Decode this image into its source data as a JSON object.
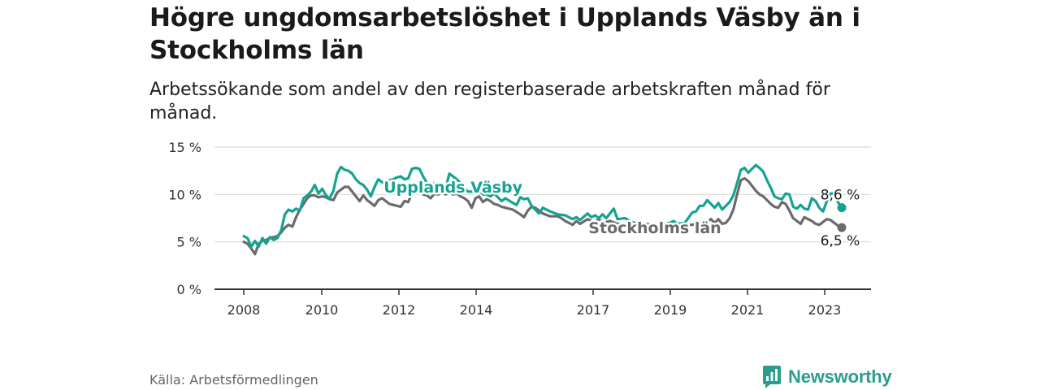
{
  "header": {
    "title": "Högre ungdomsarbetslöshet i Upplands Väsby än i Stockholms län",
    "subtitle": "Arbetssökande som andel av den registerbaserade arbetskraften månad för månad."
  },
  "footer": {
    "source": "Källa: Arbetsförmedlingen",
    "brand": "Newsworthy"
  },
  "colors": {
    "upplands": "#15a391",
    "stockholm": "#6b6b6e",
    "grid": "#d9d9d9",
    "axis": "#333333"
  },
  "chart_data": {
    "type": "line",
    "title": "Högre ungdomsarbetslöshet i Upplands Väsby än i Stockholms län",
    "ylabel": "",
    "xlabel": "",
    "ylim": [
      0,
      15
    ],
    "xlim": [
      2008.0,
      2024.0
    ],
    "y_ticks": [
      0,
      5,
      10,
      15
    ],
    "y_tick_labels": [
      "0 %",
      "5 %",
      "10 %",
      "15 %"
    ],
    "x_ticks": [
      2008,
      2010,
      2012,
      2014,
      2017,
      2019,
      2021,
      2023
    ],
    "x_tick_labels": [
      "2008",
      "2010",
      "2012",
      "2014",
      "2017",
      "2019",
      "2021",
      "2023"
    ],
    "grid": true,
    "series": [
      {
        "name": "Upplands Väsby",
        "color_key": "upplands",
        "last_value_label": "8,6 %",
        "points": [
          [
            2008.0,
            5.6
          ],
          [
            2008.1,
            5.4
          ],
          [
            2008.2,
            4.5
          ],
          [
            2008.3,
            5.1
          ],
          [
            2008.4,
            4.5
          ],
          [
            2008.5,
            5.4
          ],
          [
            2008.6,
            4.8
          ],
          [
            2008.7,
            5.5
          ],
          [
            2008.8,
            5.2
          ],
          [
            2008.9,
            5.4
          ],
          [
            2009.0,
            6.2
          ],
          [
            2009.1,
            7.9
          ],
          [
            2009.2,
            8.4
          ],
          [
            2009.3,
            8.2
          ],
          [
            2009.4,
            8.5
          ],
          [
            2009.5,
            8.3
          ],
          [
            2009.6,
            9.6
          ],
          [
            2009.7,
            9.9
          ],
          [
            2009.8,
            10.3
          ],
          [
            2009.9,
            11.0
          ],
          [
            2010.0,
            10.1
          ],
          [
            2010.1,
            10.6
          ],
          [
            2010.2,
            9.9
          ],
          [
            2010.3,
            9.6
          ],
          [
            2010.4,
            10.4
          ],
          [
            2010.5,
            12.2
          ],
          [
            2010.6,
            12.9
          ],
          [
            2010.7,
            12.6
          ],
          [
            2010.8,
            12.5
          ],
          [
            2010.9,
            12.2
          ],
          [
            2011.0,
            11.6
          ],
          [
            2011.1,
            11.2
          ],
          [
            2011.2,
            11.0
          ],
          [
            2011.3,
            10.5
          ],
          [
            2011.4,
            9.8
          ],
          [
            2011.5,
            10.8
          ],
          [
            2011.6,
            11.6
          ],
          [
            2011.7,
            11.3
          ],
          [
            2011.8,
            11.1
          ],
          [
            2011.9,
            11.5
          ],
          [
            2012.0,
            11.6
          ],
          [
            2012.1,
            11.8
          ],
          [
            2012.2,
            11.9
          ],
          [
            2012.3,
            11.6
          ],
          [
            2012.4,
            11.7
          ],
          [
            2012.5,
            12.7
          ],
          [
            2012.6,
            12.8
          ],
          [
            2012.7,
            12.7
          ],
          [
            2012.8,
            11.9
          ],
          [
            2012.9,
            11.2
          ],
          [
            2013.0,
            10.4
          ],
          [
            2013.1,
            11.2
          ],
          [
            2013.2,
            11.0
          ],
          [
            2013.3,
            10.9
          ],
          [
            2013.4,
            10.6
          ],
          [
            2013.5,
            12.2
          ],
          [
            2013.6,
            11.9
          ],
          [
            2013.7,
            11.6
          ],
          [
            2013.8,
            11.2
          ],
          [
            2013.9,
            10.7
          ],
          [
            2014.0,
            10.3
          ],
          [
            2014.1,
            10.3
          ],
          [
            2014.2,
            10.4
          ],
          [
            2014.3,
            10.5
          ],
          [
            2014.4,
            10.0
          ],
          [
            2014.5,
            10.0
          ],
          [
            2014.6,
            9.8
          ],
          [
            2014.7,
            10.1
          ],
          [
            2014.8,
            9.7
          ],
          [
            2014.9,
            9.3
          ],
          [
            2015.0,
            9.6
          ],
          [
            2015.2,
            9.1
          ],
          [
            2015.3,
            8.9
          ],
          [
            2015.4,
            9.7
          ],
          [
            2015.5,
            9.5
          ],
          [
            2015.6,
            9.6
          ],
          [
            2015.7,
            8.8
          ],
          [
            2015.8,
            8.4
          ],
          [
            2015.9,
            8.0
          ],
          [
            2016.0,
            8.6
          ],
          [
            2016.2,
            8.2
          ],
          [
            2016.4,
            7.9
          ],
          [
            2016.6,
            7.8
          ],
          [
            2016.8,
            7.4
          ],
          [
            2016.9,
            7.6
          ],
          [
            2017.0,
            7.3
          ],
          [
            2017.2,
            8.0
          ],
          [
            2017.3,
            7.6
          ],
          [
            2017.4,
            7.8
          ],
          [
            2017.5,
            7.5
          ],
          [
            2017.6,
            7.9
          ],
          [
            2017.7,
            7.5
          ],
          [
            2017.9,
            8.5
          ],
          [
            2018.0,
            7.4
          ],
          [
            2018.2,
            7.5
          ],
          [
            2018.4,
            7.1
          ],
          [
            2018.6,
            6.8
          ],
          [
            2018.8,
            6.9
          ],
          [
            2019.0,
            6.6
          ],
          [
            2019.2,
            6.8
          ],
          [
            2019.4,
            7.0
          ],
          [
            2019.5,
            7.2
          ],
          [
            2019.6,
            6.9
          ],
          [
            2019.8,
            7.0
          ],
          [
            2020.0,
            8.1
          ],
          [
            2020.1,
            8.2
          ],
          [
            2020.2,
            8.8
          ],
          [
            2020.3,
            8.8
          ],
          [
            2020.4,
            9.4
          ],
          [
            2020.5,
            9.0
          ],
          [
            2020.6,
            8.6
          ],
          [
            2020.7,
            9.1
          ],
          [
            2020.8,
            8.4
          ],
          [
            2020.9,
            8.8
          ],
          [
            2021.0,
            9.2
          ],
          [
            2021.1,
            9.9
          ],
          [
            2021.2,
            11.2
          ],
          [
            2021.3,
            12.6
          ],
          [
            2021.4,
            12.8
          ],
          [
            2021.5,
            12.3
          ],
          [
            2021.6,
            12.7
          ],
          [
            2021.7,
            13.1
          ],
          [
            2021.8,
            12.8
          ],
          [
            2021.9,
            12.4
          ],
          [
            2022.0,
            11.5
          ],
          [
            2022.1,
            10.7
          ],
          [
            2022.2,
            9.8
          ],
          [
            2022.3,
            9.6
          ],
          [
            2022.4,
            9.5
          ],
          [
            2022.5,
            10.1
          ],
          [
            2022.6,
            10.0
          ],
          [
            2022.7,
            8.7
          ],
          [
            2022.8,
            8.5
          ],
          [
            2022.9,
            8.9
          ],
          [
            2023.0,
            8.5
          ],
          [
            2023.1,
            8.4
          ],
          [
            2023.2,
            9.6
          ],
          [
            2023.3,
            9.3
          ],
          [
            2023.4,
            8.6
          ],
          [
            2023.5,
            8.2
          ],
          [
            2023.6,
            9.3
          ],
          [
            2023.7,
            10.1
          ],
          [
            2023.8,
            10.1
          ],
          [
            2023.9,
            9.2
          ],
          [
            2024.0,
            8.6
          ]
        ]
      },
      {
        "name": "Stockholms län",
        "color_key": "stockholm",
        "last_value_label": "6,5 %",
        "points": [
          [
            2008.0,
            5.0
          ],
          [
            2008.1,
            4.8
          ],
          [
            2008.2,
            4.3
          ],
          [
            2008.3,
            3.7
          ],
          [
            2008.4,
            4.8
          ],
          [
            2008.5,
            5.1
          ],
          [
            2008.6,
            5.2
          ],
          [
            2008.7,
            5.4
          ],
          [
            2008.8,
            5.5
          ],
          [
            2008.9,
            5.6
          ],
          [
            2009.0,
            6.0
          ],
          [
            2009.1,
            6.5
          ],
          [
            2009.2,
            6.8
          ],
          [
            2009.3,
            6.6
          ],
          [
            2009.4,
            7.6
          ],
          [
            2009.5,
            8.4
          ],
          [
            2009.6,
            9.0
          ],
          [
            2009.7,
            9.6
          ],
          [
            2009.8,
            9.9
          ],
          [
            2009.9,
            9.9
          ],
          [
            2010.0,
            9.7
          ],
          [
            2010.1,
            9.8
          ],
          [
            2010.2,
            9.7
          ],
          [
            2010.3,
            9.5
          ],
          [
            2010.4,
            9.4
          ],
          [
            2010.5,
            10.2
          ],
          [
            2010.6,
            10.5
          ],
          [
            2010.7,
            10.8
          ],
          [
            2010.8,
            10.8
          ],
          [
            2010.9,
            10.3
          ],
          [
            2011.0,
            9.8
          ],
          [
            2011.1,
            9.3
          ],
          [
            2011.2,
            9.9
          ],
          [
            2011.3,
            9.4
          ],
          [
            2011.4,
            9.1
          ],
          [
            2011.5,
            8.8
          ],
          [
            2011.6,
            9.4
          ],
          [
            2011.7,
            9.6
          ],
          [
            2011.8,
            9.3
          ],
          [
            2011.9,
            9.0
          ],
          [
            2012.0,
            8.9
          ],
          [
            2012.1,
            8.8
          ],
          [
            2012.2,
            8.7
          ],
          [
            2012.3,
            9.3
          ],
          [
            2012.4,
            9.2
          ],
          [
            2012.5,
            10.1
          ],
          [
            2012.6,
            10.4
          ],
          [
            2012.7,
            10.6
          ],
          [
            2012.8,
            10.0
          ],
          [
            2012.9,
            9.9
          ],
          [
            2013.0,
            9.6
          ],
          [
            2013.1,
            10.1
          ],
          [
            2013.2,
            10.0
          ],
          [
            2013.3,
            10.2
          ],
          [
            2013.4,
            10.0
          ],
          [
            2013.5,
            10.2
          ],
          [
            2013.6,
            10.0
          ],
          [
            2013.7,
            10.1
          ],
          [
            2013.8,
            9.8
          ],
          [
            2013.9,
            9.6
          ],
          [
            2014.0,
            9.3
          ],
          [
            2014.1,
            8.6
          ],
          [
            2014.2,
            9.6
          ],
          [
            2014.3,
            9.8
          ],
          [
            2014.4,
            9.2
          ],
          [
            2014.5,
            9.5
          ],
          [
            2014.6,
            9.3
          ],
          [
            2014.7,
            9.0
          ],
          [
            2014.8,
            8.9
          ],
          [
            2014.9,
            8.7
          ],
          [
            2015.0,
            8.6
          ],
          [
            2015.2,
            8.4
          ],
          [
            2015.4,
            7.9
          ],
          [
            2015.5,
            7.6
          ],
          [
            2015.6,
            8.3
          ],
          [
            2015.7,
            8.7
          ],
          [
            2015.8,
            8.6
          ],
          [
            2015.9,
            8.3
          ],
          [
            2016.0,
            8.0
          ],
          [
            2016.2,
            7.7
          ],
          [
            2016.4,
            7.7
          ],
          [
            2016.5,
            7.5
          ],
          [
            2016.6,
            7.2
          ],
          [
            2016.8,
            6.8
          ],
          [
            2016.9,
            7.2
          ],
          [
            2017.0,
            6.9
          ],
          [
            2017.2,
            7.4
          ],
          [
            2017.3,
            7.2
          ],
          [
            2017.4,
            7.1
          ],
          [
            2017.5,
            7.4
          ],
          [
            2017.6,
            7.0
          ],
          [
            2017.8,
            7.2
          ],
          [
            2018.0,
            6.9
          ],
          [
            2018.2,
            6.8
          ],
          [
            2018.4,
            6.7
          ],
          [
            2018.6,
            6.5
          ],
          [
            2018.8,
            6.6
          ],
          [
            2019.0,
            6.6
          ],
          [
            2019.2,
            6.8
          ],
          [
            2019.4,
            6.9
          ],
          [
            2019.6,
            6.8
          ],
          [
            2019.8,
            6.8
          ],
          [
            2020.0,
            6.8
          ],
          [
            2020.1,
            6.9
          ],
          [
            2020.2,
            7.1
          ],
          [
            2020.3,
            7.0
          ],
          [
            2020.4,
            7.1
          ],
          [
            2020.5,
            7.4
          ],
          [
            2020.6,
            7.0
          ],
          [
            2020.7,
            7.4
          ],
          [
            2020.8,
            6.9
          ],
          [
            2020.9,
            7.0
          ],
          [
            2021.0,
            7.5
          ],
          [
            2021.1,
            8.4
          ],
          [
            2021.2,
            10.0
          ],
          [
            2021.3,
            11.5
          ],
          [
            2021.4,
            11.7
          ],
          [
            2021.5,
            11.4
          ],
          [
            2021.6,
            10.9
          ],
          [
            2021.7,
            10.4
          ],
          [
            2021.8,
            10.0
          ],
          [
            2021.9,
            9.8
          ],
          [
            2022.0,
            9.4
          ],
          [
            2022.1,
            9.0
          ],
          [
            2022.2,
            8.7
          ],
          [
            2022.3,
            8.6
          ],
          [
            2022.4,
            9.2
          ],
          [
            2022.5,
            9.0
          ],
          [
            2022.6,
            8.3
          ],
          [
            2022.7,
            7.5
          ],
          [
            2022.8,
            7.2
          ],
          [
            2022.9,
            6.9
          ],
          [
            2023.0,
            7.6
          ],
          [
            2023.1,
            7.4
          ],
          [
            2023.2,
            7.2
          ],
          [
            2023.3,
            6.9
          ],
          [
            2023.4,
            6.8
          ],
          [
            2023.5,
            7.1
          ],
          [
            2023.6,
            7.4
          ],
          [
            2023.7,
            7.3
          ],
          [
            2023.8,
            7.0
          ],
          [
            2023.9,
            6.7
          ],
          [
            2024.0,
            6.5
          ]
        ]
      }
    ],
    "annotations": [
      {
        "text": "Upplands Väsby",
        "series": "Upplands Väsby",
        "x": 2013.6,
        "y": 10.2
      },
      {
        "text": "Stockholms län",
        "series": "Stockholms län",
        "x": 2019.0,
        "y": 5.9
      }
    ]
  }
}
